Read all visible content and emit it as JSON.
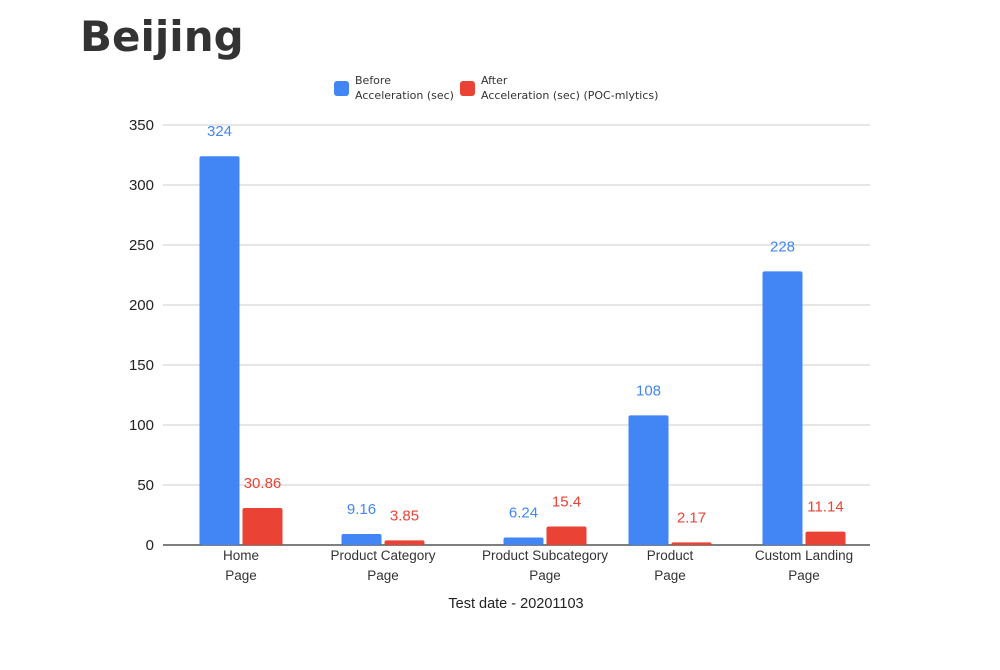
{
  "title": "Beijing",
  "chart_data": {
    "type": "bar",
    "title": "Beijing",
    "xlabel": "Test date - 20201103",
    "ylabel": "",
    "ylim": [
      0,
      350
    ],
    "yticks": [
      0,
      50,
      100,
      150,
      200,
      250,
      300,
      350
    ],
    "grid": true,
    "legend_position": "top",
    "categories": [
      [
        "Home",
        "Page"
      ],
      [
        "Product Category",
        "Page"
      ],
      [
        "Product Subcategory",
        "Page"
      ],
      [
        "Product",
        "Page"
      ],
      [
        "Custom Landing",
        "Page"
      ]
    ],
    "series": [
      {
        "name_lines": [
          "Before",
          "Acceleration (sec)"
        ],
        "color": "#4285f4",
        "values": [
          324,
          9.16,
          6.24,
          108,
          228
        ],
        "labels": [
          "324",
          "9.16",
          "6.24",
          "108",
          "228"
        ]
      },
      {
        "name_lines": [
          "After",
          "Acceleration (sec) (POC-mlytics)"
        ],
        "color": "#ea4335",
        "values": [
          30.86,
          3.85,
          15.4,
          2.17,
          11.14
        ],
        "labels": [
          "30.86",
          "3.85",
          "15.4",
          "2.17",
          "11.14"
        ]
      }
    ]
  }
}
